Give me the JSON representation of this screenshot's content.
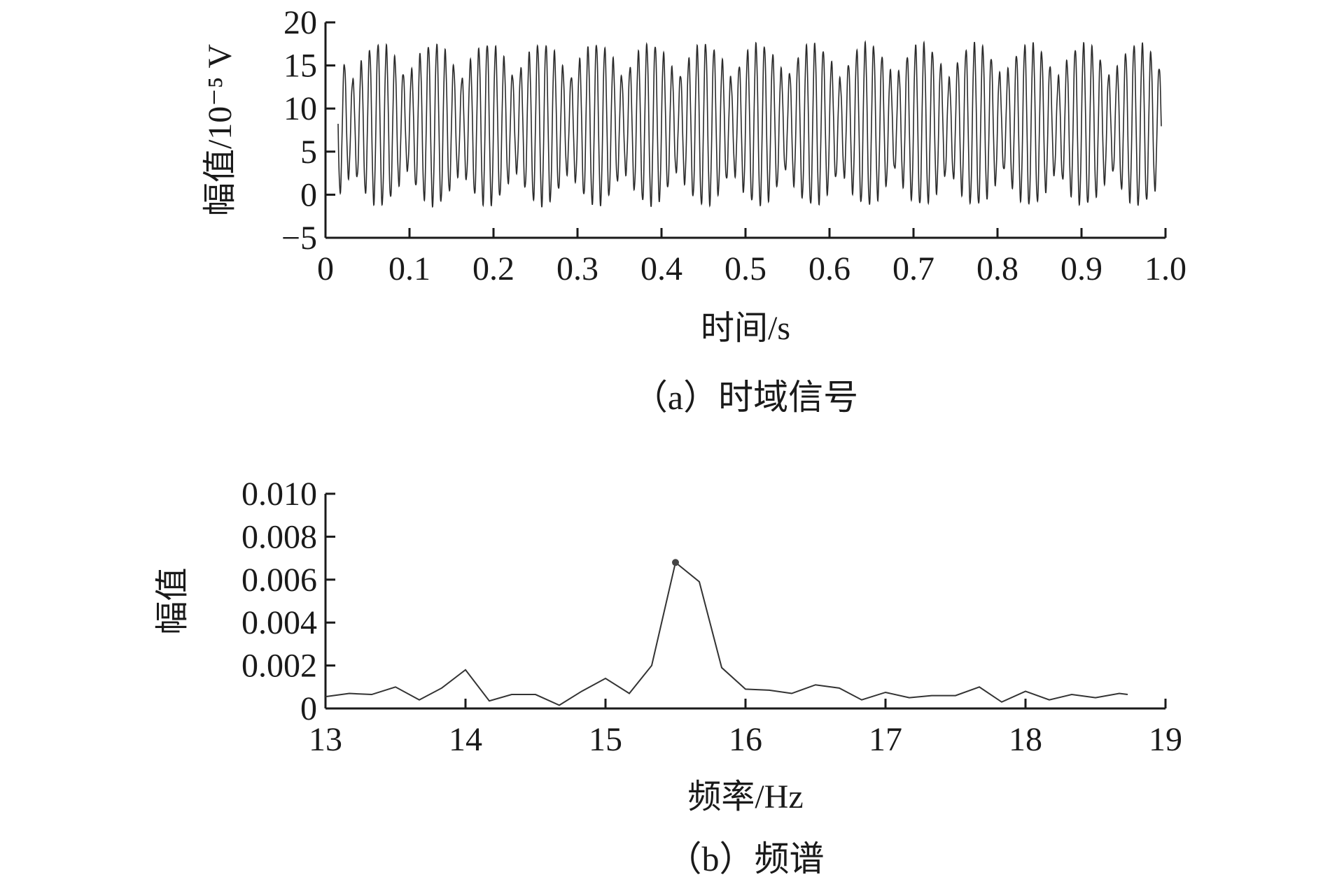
{
  "chart_data": [
    {
      "type": "line",
      "caption": "（a）时域信号",
      "xlabel": "时间/s",
      "ylabel": "幅值/10⁻⁵ V",
      "xlim": [
        0,
        1.0
      ],
      "ylim": [
        -5,
        20
      ],
      "x_ticks": [
        "0",
        "0.1",
        "0.2",
        "0.3",
        "0.4",
        "0.5",
        "0.6",
        "0.7",
        "0.8",
        "0.9",
        "1.0"
      ],
      "x_tick_values": [
        0,
        0.1,
        0.2,
        0.3,
        0.4,
        0.5,
        0.6,
        0.7,
        0.8,
        0.9,
        1.0
      ],
      "y_ticks": [
        "−5",
        "0",
        "5",
        "10",
        "15",
        "20"
      ],
      "y_tick_values": [
        -5,
        0,
        5,
        10,
        15,
        20
      ],
      "grid": false,
      "signal": {
        "x_start": 0.015,
        "x_end": 0.995,
        "baseline": 9,
        "peak_max": 17.5,
        "trough_min": -1.2,
        "oscillation_frequency_hz": 100,
        "beat_frequency_hz": 15.5
      }
    },
    {
      "type": "line",
      "caption": "（b）频谱",
      "xlabel": "频率/Hz",
      "ylabel": "幅值",
      "xlim": [
        13,
        19
      ],
      "ylim": [
        0,
        0.01
      ],
      "x_ticks": [
        "13",
        "14",
        "15",
        "16",
        "17",
        "18",
        "19"
      ],
      "x_tick_values": [
        13,
        14,
        15,
        16,
        17,
        18,
        19
      ],
      "y_ticks": [
        "0",
        "0.002",
        "0.004",
        "0.006",
        "0.008",
        "0.010"
      ],
      "y_tick_values": [
        0,
        0.002,
        0.004,
        0.006,
        0.008,
        0.01
      ],
      "grid": false,
      "series": [
        {
          "x": [
            13.0,
            13.17,
            13.33,
            13.5,
            13.67,
            13.83,
            14.0,
            14.17,
            14.33,
            14.5,
            14.67,
            14.83,
            15.0,
            15.17,
            15.33,
            15.5,
            15.67,
            15.83,
            16.0,
            16.17,
            16.33,
            16.5,
            16.67,
            16.83,
            17.0,
            17.17,
            17.33,
            17.5,
            17.67,
            17.83,
            18.0,
            18.17,
            18.33,
            18.5,
            18.67,
            18.73
          ],
          "y": [
            0.00055,
            0.0007,
            0.00065,
            0.001,
            0.0004,
            0.00095,
            0.0018,
            0.00035,
            0.00065,
            0.00065,
            0.00015,
            0.0008,
            0.0014,
            0.0007,
            0.002,
            0.0068,
            0.0059,
            0.0019,
            0.0009,
            0.00085,
            0.0007,
            0.0011,
            0.00095,
            0.0004,
            0.00075,
            0.0005,
            0.0006,
            0.0006,
            0.001,
            0.0003,
            0.0008,
            0.0004,
            0.00065,
            0.0005,
            0.0007,
            0.00065
          ]
        }
      ],
      "peak_marker": {
        "x": 15.5,
        "y": 0.0068
      }
    }
  ]
}
